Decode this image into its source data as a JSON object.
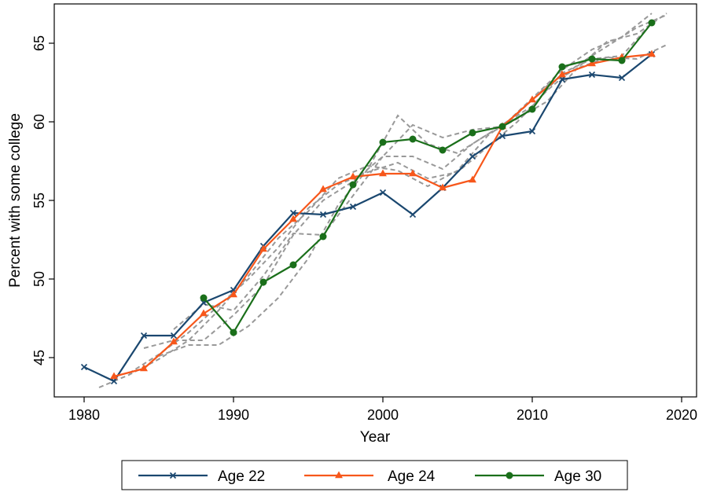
{
  "chart_data": {
    "type": "line",
    "title": "",
    "xlabel": "Year",
    "ylabel": "Percent with some college",
    "xlim": [
      1978,
      2021
    ],
    "ylim": [
      42.5,
      67.5
    ],
    "xticks": [
      1980,
      1990,
      2000,
      2010,
      2020
    ],
    "yticks": [
      45,
      50,
      55,
      60,
      65
    ],
    "grid": false,
    "legend_position": "bottom",
    "series": [
      {
        "name": "Age 22",
        "color": "#1a476f",
        "marker": "x",
        "points": [
          [
            1980,
            44.4
          ],
          [
            1982,
            43.5
          ],
          [
            1984,
            46.4
          ],
          [
            1986,
            46.4
          ],
          [
            1988,
            48.5
          ],
          [
            1990,
            49.3
          ],
          [
            1992,
            52.1
          ],
          [
            1994,
            54.2
          ],
          [
            1996,
            54.1
          ],
          [
            1998,
            54.6
          ],
          [
            2000,
            55.5
          ],
          [
            2002,
            54.1
          ],
          [
            2004,
            55.8
          ],
          [
            2006,
            57.8
          ],
          [
            2008,
            59.1
          ],
          [
            2010,
            59.4
          ],
          [
            2012,
            62.7
          ],
          [
            2014,
            63.0
          ],
          [
            2016,
            62.8
          ],
          [
            2018,
            64.3
          ]
        ]
      },
      {
        "name": "Age 24",
        "color": "#f7571b",
        "marker": "triangle",
        "points": [
          [
            1982,
            43.8
          ],
          [
            1984,
            44.3
          ],
          [
            1986,
            46.0
          ],
          [
            1988,
            47.8
          ],
          [
            1990,
            49.0
          ],
          [
            1992,
            51.9
          ],
          [
            1994,
            53.8
          ],
          [
            1996,
            55.7
          ],
          [
            1998,
            56.5
          ],
          [
            2000,
            56.7
          ],
          [
            2002,
            56.7
          ],
          [
            2004,
            55.8
          ],
          [
            2006,
            56.3
          ],
          [
            2008,
            59.7
          ],
          [
            2010,
            61.4
          ],
          [
            2012,
            63.0
          ],
          [
            2014,
            63.7
          ],
          [
            2016,
            64.1
          ],
          [
            2018,
            64.3
          ]
        ]
      },
      {
        "name": "Age 30",
        "color": "#1a6f1a",
        "marker": "circle",
        "points": [
          [
            1988,
            48.8
          ],
          [
            1990,
            46.6
          ],
          [
            1992,
            49.8
          ],
          [
            1994,
            50.9
          ],
          [
            1996,
            52.7
          ],
          [
            1998,
            56.0
          ],
          [
            2000,
            58.7
          ],
          [
            2002,
            58.9
          ],
          [
            2004,
            58.2
          ],
          [
            2006,
            59.3
          ],
          [
            2008,
            59.7
          ],
          [
            2010,
            60.8
          ],
          [
            2012,
            63.5
          ],
          [
            2014,
            64.0
          ],
          [
            2016,
            63.9
          ],
          [
            2018,
            66.3
          ]
        ]
      }
    ],
    "background_series": [
      {
        "color": "#999999",
        "points": [
          [
            1981,
            43.1
          ],
          [
            1983,
            43.9
          ],
          [
            1985,
            44.9
          ],
          [
            1987,
            46.1
          ],
          [
            1989,
            48.0
          ],
          [
            1991,
            50.2
          ],
          [
            1993,
            52.6
          ],
          [
            1995,
            54.3
          ],
          [
            1997,
            56.4
          ],
          [
            1999,
            57.2
          ],
          [
            2001,
            56.9
          ],
          [
            2003,
            55.9
          ],
          [
            2005,
            56.9
          ],
          [
            2007,
            59.1
          ],
          [
            2009,
            60.5
          ],
          [
            2011,
            62.3
          ],
          [
            2013,
            63.4
          ],
          [
            2015,
            64.1
          ],
          [
            2017,
            64.0
          ],
          [
            2019,
            64.9
          ]
        ]
      },
      {
        "color": "#999999",
        "points": [
          [
            1983,
            44.0
          ],
          [
            1985,
            45.2
          ],
          [
            1987,
            46.6
          ],
          [
            1989,
            48.3
          ],
          [
            1991,
            50.0
          ],
          [
            1993,
            52.0
          ],
          [
            1995,
            54.5
          ],
          [
            1997,
            56.0
          ],
          [
            1999,
            56.8
          ],
          [
            2001,
            57.4
          ],
          [
            2003,
            56.4
          ],
          [
            2005,
            56.8
          ],
          [
            2007,
            58.4
          ],
          [
            2009,
            60.0
          ],
          [
            2011,
            62.0
          ],
          [
            2013,
            63.6
          ],
          [
            2015,
            64.8
          ],
          [
            2017,
            66.0
          ],
          [
            2019,
            66.8
          ]
        ]
      },
      {
        "color": "#999999",
        "points": [
          [
            1984,
            45.6
          ],
          [
            1986,
            46.1
          ],
          [
            1988,
            46.1
          ],
          [
            1990,
            47.7
          ],
          [
            1992,
            49.6
          ],
          [
            1994,
            52.8
          ],
          [
            1996,
            55.0
          ],
          [
            1998,
            56.2
          ],
          [
            2000,
            57.8
          ],
          [
            2002,
            59.8
          ],
          [
            2004,
            59.0
          ],
          [
            2006,
            59.5
          ],
          [
            2008,
            59.7
          ],
          [
            2010,
            61.5
          ],
          [
            2012,
            63.3
          ],
          [
            2014,
            64.6
          ],
          [
            2016,
            65.4
          ],
          [
            2018,
            66.9
          ]
        ]
      },
      {
        "color": "#999999",
        "points": [
          [
            1985,
            45.1
          ],
          [
            1987,
            45.8
          ],
          [
            1989,
            45.8
          ],
          [
            1991,
            47.0
          ],
          [
            1993,
            48.8
          ],
          [
            1995,
            51.3
          ],
          [
            1997,
            54.7
          ],
          [
            1999,
            57.0
          ],
          [
            2001,
            60.4
          ],
          [
            2003,
            58.6
          ],
          [
            2005,
            58.0
          ],
          [
            2007,
            59.2
          ],
          [
            2009,
            60.2
          ],
          [
            2011,
            61.3
          ],
          [
            2013,
            63.4
          ],
          [
            2015,
            65.1
          ],
          [
            2017,
            65.6
          ],
          [
            2019,
            66.9
          ]
        ]
      },
      {
        "color": "#999999",
        "points": [
          [
            1986,
            46.8
          ],
          [
            1988,
            48.4
          ],
          [
            1990,
            48.0
          ],
          [
            1992,
            50.2
          ],
          [
            1994,
            52.9
          ],
          [
            1996,
            52.8
          ],
          [
            1998,
            55.3
          ],
          [
            2000,
            57.8
          ],
          [
            2002,
            57.8
          ],
          [
            2004,
            57.0
          ],
          [
            2006,
            58.6
          ],
          [
            2008,
            59.8
          ],
          [
            2010,
            61.0
          ],
          [
            2012,
            63.1
          ],
          [
            2014,
            64.0
          ],
          [
            2016,
            64.2
          ],
          [
            2018,
            66.3
          ]
        ]
      }
    ]
  }
}
